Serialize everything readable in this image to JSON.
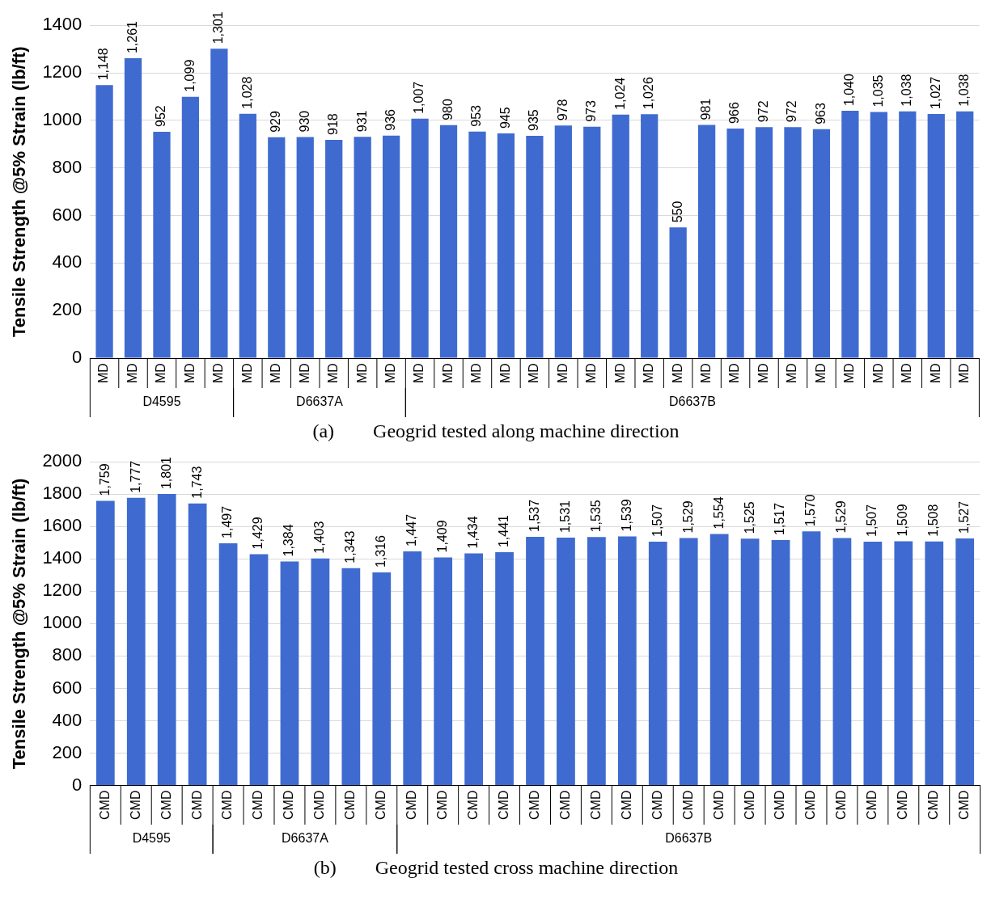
{
  "chart_data": [
    {
      "type": "bar",
      "title": "(a)        Geogrid tested along machine direction",
      "ylabel": "Tensile Strength @5% Strain (lb/ft)",
      "categories": [
        "MD",
        "MD",
        "MD",
        "MD",
        "MD",
        "MD",
        "MD",
        "MD",
        "MD",
        "MD",
        "MD",
        "MD",
        "MD",
        "MD",
        "MD",
        "MD",
        "MD",
        "MD",
        "MD",
        "MD",
        "MD",
        "MD",
        "MD",
        "MD",
        "MD",
        "MD",
        "MD",
        "MD",
        "MD",
        "MD",
        "MD"
      ],
      "ylim": [
        0,
        1400
      ],
      "yticks": [
        0,
        200,
        400,
        600,
        800,
        1000,
        1200,
        1400
      ],
      "grid": "y",
      "legend": false,
      "series": [
        {
          "name": "D4595",
          "color": "#3f6bd0",
          "values": [
            1148,
            1261,
            952,
            1099,
            1301,
            null,
            null,
            null,
            null,
            null,
            null,
            null,
            null,
            null,
            null,
            null,
            null,
            null,
            null,
            null,
            null,
            null,
            null,
            null,
            null,
            null,
            null,
            null,
            null,
            null,
            null
          ],
          "value_labels": [
            "1,148",
            "1,261",
            "952",
            "1,099",
            "1,301",
            null,
            null,
            null,
            null,
            null,
            null,
            null,
            null,
            null,
            null,
            null,
            null,
            null,
            null,
            null,
            null,
            null,
            null,
            null,
            null,
            null,
            null,
            null,
            null,
            null,
            null
          ]
        },
        {
          "name": "D6637A",
          "color": "#3f6bd0",
          "values": [
            null,
            null,
            null,
            null,
            null,
            1028,
            929,
            930,
            918,
            931,
            936,
            null,
            null,
            null,
            null,
            null,
            null,
            null,
            null,
            null,
            null,
            null,
            null,
            null,
            null,
            null,
            null,
            null,
            null,
            null,
            null
          ],
          "value_labels": [
            null,
            null,
            null,
            null,
            null,
            "1,028",
            "929",
            "930",
            "918",
            "931",
            "936",
            null,
            null,
            null,
            null,
            null,
            null,
            null,
            null,
            null,
            null,
            null,
            null,
            null,
            null,
            null,
            null,
            null,
            null,
            null,
            null
          ]
        },
        {
          "name": "D6637B",
          "color": "#3f6bd0",
          "values": [
            null,
            null,
            null,
            null,
            null,
            null,
            null,
            null,
            null,
            null,
            null,
            1007,
            980,
            953,
            945,
            935,
            978,
            973,
            1024,
            1026,
            550,
            981,
            966,
            972,
            972,
            963,
            1040,
            1035,
            1038,
            1027,
            1038
          ],
          "value_labels": [
            null,
            null,
            null,
            null,
            null,
            null,
            null,
            null,
            null,
            null,
            null,
            "1,007",
            "980",
            "953",
            "945",
            "935",
            "978",
            "973",
            "1,024",
            "1,026",
            "550",
            "981",
            "966",
            "972",
            "972",
            "963",
            "1,040",
            "1,035",
            "1,038",
            "1,027",
            "1,038"
          ]
        }
      ]
    },
    {
      "type": "bar",
      "title": "(b)        Geogrid tested cross machine direction",
      "ylabel": "Tensile Strength @5% Strain (lb/ft)",
      "categories": [
        "CMD",
        "CMD",
        "CMD",
        "CMD",
        "CMD",
        "CMD",
        "CMD",
        "CMD",
        "CMD",
        "CMD",
        "CMD",
        "CMD",
        "CMD",
        "CMD",
        "CMD",
        "CMD",
        "CMD",
        "CMD",
        "CMD",
        "CMD",
        "CMD",
        "CMD",
        "CMD",
        "CMD",
        "CMD",
        "CMD",
        "CMD",
        "CMD",
        "CMD"
      ],
      "ylim": [
        0,
        2000
      ],
      "yticks": [
        0,
        200,
        400,
        600,
        800,
        1000,
        1200,
        1400,
        1600,
        1800,
        2000
      ],
      "grid": "y",
      "legend": false,
      "series": [
        {
          "name": "D4595",
          "color": "#3f6bd0",
          "values": [
            1759,
            1777,
            1801,
            1743,
            null,
            null,
            null,
            null,
            null,
            null,
            null,
            null,
            null,
            null,
            null,
            null,
            null,
            null,
            null,
            null,
            null,
            null,
            null,
            null,
            null,
            null,
            null,
            null,
            null
          ],
          "value_labels": [
            "1,759",
            "1,777",
            "1,801",
            "1,743",
            null,
            null,
            null,
            null,
            null,
            null,
            null,
            null,
            null,
            null,
            null,
            null,
            null,
            null,
            null,
            null,
            null,
            null,
            null,
            null,
            null,
            null,
            null,
            null,
            null
          ]
        },
        {
          "name": "D6637A",
          "color": "#3f6bd0",
          "values": [
            null,
            null,
            null,
            null,
            1497,
            1429,
            1384,
            1403,
            1343,
            1316,
            null,
            null,
            null,
            null,
            null,
            null,
            null,
            null,
            null,
            null,
            null,
            null,
            null,
            null,
            null,
            null,
            null,
            null,
            null
          ],
          "value_labels": [
            null,
            null,
            null,
            null,
            "1,497",
            "1,429",
            "1,384",
            "1,403",
            "1,343",
            "1,316",
            null,
            null,
            null,
            null,
            null,
            null,
            null,
            null,
            null,
            null,
            null,
            null,
            null,
            null,
            null,
            null,
            null,
            null,
            null
          ]
        },
        {
          "name": "D6637B",
          "color": "#3f6bd0",
          "values": [
            null,
            null,
            null,
            null,
            null,
            null,
            null,
            null,
            null,
            null,
            1447,
            1409,
            1434,
            1441,
            1537,
            1531,
            1535,
            1539,
            1507,
            1529,
            1554,
            1525,
            1517,
            1570,
            1529,
            1507,
            1509,
            1508,
            1527
          ],
          "value_labels": [
            null,
            null,
            null,
            null,
            null,
            null,
            null,
            null,
            null,
            null,
            "1,447",
            "1,409",
            "1,434",
            "1,441",
            "1,537",
            "1,531",
            "1,535",
            "1,539",
            "1,507",
            "1,529",
            "1,554",
            "1,525",
            "1,517",
            "1,570",
            "1,529",
            "1,507",
            "1,509",
            "1,508",
            "1,527"
          ]
        }
      ]
    }
  ]
}
